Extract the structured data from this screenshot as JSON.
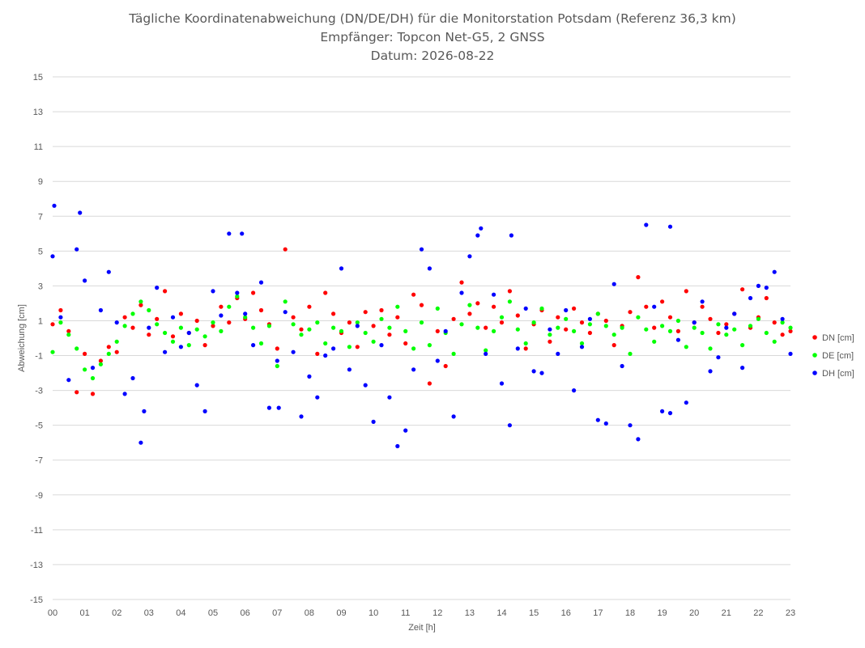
{
  "chart_data": {
    "type": "scatter",
    "title_lines": [
      "Tägliche Koordinatenabweichung (DN/DE/DH) für die Monitorstation Potsdam (Referenz 36,3 km)",
      "Empfänger: Topcon Net-G5, 2 GNSS",
      "Datum: 2026-08-22"
    ],
    "xlabel": "Zeit [h]",
    "ylabel": "Abweichung [cm]",
    "x_ticks": [
      "00",
      "01",
      "02",
      "03",
      "04",
      "05",
      "06",
      "07",
      "08",
      "09",
      "10",
      "11",
      "12",
      "13",
      "14",
      "15",
      "16",
      "17",
      "18",
      "19",
      "20",
      "21",
      "22",
      "23"
    ],
    "xlim": [
      0,
      23
    ],
    "ylim": [
      -15,
      15
    ],
    "y_ticks": [
      15,
      13,
      11,
      9,
      7,
      5,
      3,
      1,
      -1,
      -3,
      -5,
      -7,
      -9,
      -11,
      -13,
      -15
    ],
    "grid": "horizontal",
    "legend_position": "right",
    "series": [
      {
        "name": "DN [cm]",
        "color": "#ff0000",
        "x": [
          0.0,
          0.25,
          0.5,
          0.75,
          1.0,
          1.25,
          1.5,
          1.75,
          2.0,
          2.25,
          2.5,
          2.75,
          3.0,
          3.25,
          3.5,
          3.75,
          4.0,
          4.25,
          4.5,
          4.75,
          5.0,
          5.25,
          5.5,
          5.75,
          6.0,
          6.25,
          6.5,
          6.75,
          7.0,
          7.25,
          7.5,
          7.75,
          8.0,
          8.25,
          8.5,
          8.75,
          9.0,
          9.25,
          9.5,
          9.75,
          10.0,
          10.25,
          10.5,
          10.75,
          11.0,
          11.25,
          11.5,
          11.75,
          12.0,
          12.25,
          12.5,
          12.75,
          13.0,
          13.25,
          13.5,
          13.75,
          14.0,
          14.25,
          14.5,
          14.75,
          15.0,
          15.25,
          15.5,
          15.75,
          16.0,
          16.25,
          16.5,
          16.75,
          17.0,
          17.25,
          17.5,
          17.75,
          18.0,
          18.25,
          18.5,
          18.75,
          19.0,
          19.25,
          19.5,
          19.75,
          20.0,
          20.25,
          20.5,
          20.75,
          21.0,
          21.25,
          21.5,
          21.75,
          22.0,
          22.25,
          22.5,
          22.75,
          23.0
        ],
        "values": [
          0.8,
          1.6,
          0.4,
          -3.1,
          -0.9,
          -3.2,
          -1.3,
          -0.5,
          -0.8,
          1.2,
          0.6,
          1.9,
          0.2,
          1.1,
          2.7,
          0.1,
          1.4,
          0.3,
          1.0,
          -0.4,
          0.7,
          1.8,
          0.9,
          2.3,
          1.1,
          2.6,
          1.6,
          0.8,
          -0.6,
          5.1,
          1.2,
          0.5,
          1.8,
          -0.9,
          2.6,
          1.4,
          0.3,
          0.9,
          -0.5,
          1.5,
          0.7,
          1.6,
          0.2,
          1.2,
          -0.3,
          2.5,
          1.9,
          -2.6,
          0.4,
          -1.6,
          1.1,
          3.2,
          1.4,
          2.0,
          0.6,
          1.8,
          0.9,
          2.7,
          1.3,
          -0.6,
          0.8,
          1.6,
          -0.2,
          1.2,
          0.5,
          1.7,
          0.9,
          0.3,
          1.4,
          1.0,
          -0.4,
          0.7,
          1.5,
          3.5,
          1.8,
          0.6,
          2.1,
          1.2,
          0.4,
          2.7,
          0.9,
          1.8,
          1.1,
          0.3,
          0.8,
          1.4,
          2.8,
          0.6,
          1.2,
          2.3,
          0.9,
          0.2,
          0.4
        ]
      },
      {
        "name": "DE [cm]",
        "color": "#00ff00",
        "x": [
          0.0,
          0.25,
          0.5,
          0.75,
          1.0,
          1.25,
          1.5,
          1.75,
          2.0,
          2.25,
          2.5,
          2.75,
          3.0,
          3.25,
          3.5,
          3.75,
          4.0,
          4.25,
          4.5,
          4.75,
          5.0,
          5.25,
          5.5,
          5.75,
          6.0,
          6.25,
          6.5,
          6.75,
          7.0,
          7.25,
          7.5,
          7.75,
          8.0,
          8.25,
          8.5,
          8.75,
          9.0,
          9.25,
          9.5,
          9.75,
          10.0,
          10.25,
          10.5,
          10.75,
          11.0,
          11.25,
          11.5,
          11.75,
          12.0,
          12.25,
          12.5,
          12.75,
          13.0,
          13.25,
          13.5,
          13.75,
          14.0,
          14.25,
          14.5,
          14.75,
          15.0,
          15.25,
          15.5,
          15.75,
          16.0,
          16.25,
          16.5,
          16.75,
          17.0,
          17.25,
          17.5,
          17.75,
          18.0,
          18.25,
          18.5,
          18.75,
          19.0,
          19.25,
          19.5,
          19.75,
          20.0,
          20.25,
          20.5,
          20.75,
          21.0,
          21.25,
          21.5,
          21.75,
          22.0,
          22.25,
          22.5,
          22.75,
          23.0
        ],
        "values": [
          -0.8,
          0.9,
          0.2,
          -0.6,
          -1.8,
          -2.3,
          -1.5,
          -0.9,
          -0.2,
          0.7,
          1.4,
          2.1,
          1.6,
          0.8,
          0.3,
          -0.2,
          0.6,
          -0.4,
          0.5,
          0.1,
          0.9,
          0.4,
          1.8,
          2.4,
          1.2,
          0.6,
          -0.3,
          0.7,
          -1.6,
          2.1,
          0.8,
          0.2,
          0.5,
          0.9,
          -0.3,
          0.6,
          0.4,
          -0.5,
          0.9,
          0.3,
          -0.2,
          1.1,
          0.6,
          1.8,
          0.4,
          -0.6,
          0.9,
          -0.4,
          1.7,
          0.3,
          -0.9,
          0.8,
          1.9,
          0.6,
          -0.7,
          0.4,
          1.2,
          2.1,
          0.5,
          -0.3,
          0.9,
          1.7,
          0.2,
          0.6,
          1.1,
          0.4,
          -0.3,
          0.8,
          1.4,
          0.7,
          0.2,
          0.6,
          -0.9,
          1.2,
          0.5,
          -0.2,
          0.7,
          0.4,
          1.0,
          -0.5,
          0.6,
          0.3,
          -0.6,
          0.8,
          0.2,
          0.5,
          -0.4,
          0.7,
          1.1,
          0.3,
          -0.2,
          0.9,
          0.6
        ]
      },
      {
        "name": "DH [cm]",
        "color": "#0000ff",
        "x": [
          0.0,
          0.25,
          0.5,
          0.75,
          1.0,
          1.25,
          1.5,
          1.75,
          2.0,
          2.25,
          2.5,
          2.75,
          3.0,
          3.25,
          3.5,
          3.75,
          4.0,
          4.25,
          4.5,
          4.75,
          5.0,
          5.25,
          5.5,
          5.75,
          6.0,
          6.25,
          6.5,
          6.75,
          7.0,
          7.25,
          7.5,
          7.75,
          8.0,
          8.25,
          8.5,
          8.75,
          9.0,
          9.25,
          9.5,
          9.75,
          10.0,
          10.25,
          10.5,
          10.75,
          11.0,
          11.25,
          11.5,
          11.75,
          12.0,
          12.25,
          12.5,
          12.75,
          13.0,
          13.25,
          13.5,
          13.75,
          14.0,
          14.25,
          14.5,
          14.75,
          15.0,
          15.25,
          15.5,
          15.75,
          16.0,
          16.25,
          16.5,
          16.75,
          17.0,
          17.25,
          17.5,
          17.75,
          18.0,
          18.25,
          18.5,
          18.75,
          19.0,
          19.25,
          19.5,
          19.75,
          20.0,
          20.25,
          20.5,
          20.75,
          21.0,
          21.25,
          21.5,
          21.75,
          22.0,
          22.25,
          22.5,
          22.75,
          23.0,
          0.05,
          0.85,
          2.85,
          5.9,
          7.05,
          13.35,
          14.3,
          19.25
        ],
        "values": [
          4.7,
          1.2,
          -2.4,
          5.1,
          3.3,
          -1.7,
          1.6,
          3.8,
          0.9,
          -3.2,
          -2.3,
          -6.0,
          0.6,
          2.9,
          -0.8,
          1.2,
          -0.5,
          0.3,
          -2.7,
          -4.2,
          2.7,
          1.3,
          6.0,
          2.6,
          1.4,
          -0.4,
          3.2,
          -4.0,
          -1.3,
          1.5,
          -0.8,
          -4.5,
          -2.2,
          -3.4,
          -1.0,
          -0.6,
          4.0,
          -1.8,
          0.7,
          -2.7,
          -4.8,
          -0.4,
          -3.4,
          -6.2,
          -5.3,
          -1.8,
          5.1,
          4.0,
          -1.3,
          0.4,
          -4.5,
          2.6,
          4.7,
          5.9,
          -0.9,
          2.5,
          -2.6,
          -5.0,
          -0.6,
          1.7,
          -1.9,
          -2.0,
          0.5,
          -0.9,
          1.6,
          -3.0,
          -0.5,
          1.1,
          -4.7,
          -4.9,
          3.1,
          -1.6,
          -5.0,
          -5.8,
          6.5,
          1.8,
          -4.2,
          -4.3,
          -0.1,
          -3.7,
          0.9,
          2.1,
          -1.9,
          -1.1,
          0.6,
          1.4,
          -1.7,
          2.3,
          3.0,
          2.9,
          3.8,
          1.1,
          -0.9,
          7.6,
          7.2,
          -4.2,
          6.0,
          -4.0,
          6.3,
          5.9,
          6.4
        ]
      }
    ]
  }
}
